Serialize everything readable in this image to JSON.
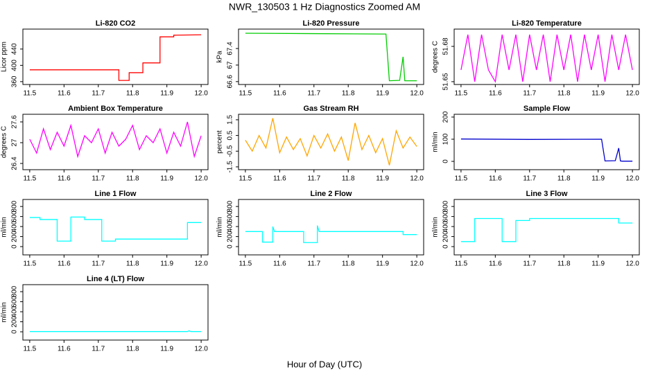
{
  "title": "NWR_130503  1 Hz Diagnostics Zoomed AM",
  "xlabel": "Hour of Day (UTC)",
  "chart_data": [
    {
      "type": "line",
      "title": "Li-820 CO2",
      "ylabel": "Licor ppm",
      "x": [
        11.5,
        11.76,
        11.76,
        11.79,
        11.79,
        11.83,
        11.83,
        11.88,
        11.88,
        11.92,
        11.92,
        12.0
      ],
      "series": [
        {
          "color": "#ff0000",
          "values": [
            389,
            389,
            363,
            363,
            382,
            382,
            406,
            406,
            470,
            470,
            474,
            475
          ]
        }
      ],
      "xlim": [
        11.48,
        12.02
      ],
      "xticks": [
        11.5,
        11.6,
        11.7,
        11.8,
        11.9,
        {
          "value": 12,
          "label": "12.0"
        }
      ],
      "ylim": [
        353,
        489
      ],
      "yticks": [
        360,
        400,
        440
      ]
    },
    {
      "type": "line",
      "title": "Li-820 Pressure",
      "ylabel": "kPa",
      "x": [
        11.5,
        11.7,
        11.9,
        11.91,
        11.92,
        11.95,
        11.96,
        11.965,
        11.97,
        12.0
      ],
      "series": [
        {
          "color": "#00cc00",
          "values": [
            67.77,
            67.76,
            67.75,
            67.75,
            66.62,
            66.63,
            67.2,
            66.62,
            66.62,
            66.62
          ]
        }
      ],
      "xlim": [
        11.48,
        12.02
      ],
      "xticks": [
        11.5,
        11.6,
        11.7,
        11.8,
        11.9,
        {
          "value": 12,
          "label": "12.0"
        }
      ],
      "ylim": [
        66.53,
        67.87
      ],
      "yticks": [
        66.6,
        67.0,
        67.4
      ]
    },
    {
      "type": "line",
      "title": "Li-820 Temperature",
      "ylabel": "degrees C",
      "x": [
        11.5,
        11.52,
        11.54,
        11.56,
        11.58,
        11.6,
        11.62,
        11.64,
        11.66,
        11.68,
        11.7,
        11.72,
        11.74,
        11.76,
        11.78,
        11.8,
        11.82,
        11.84,
        11.86,
        11.88,
        11.9,
        11.92,
        11.94,
        11.96,
        11.98,
        12.0
      ],
      "series": [
        {
          "color": "#ff00ff",
          "values": [
            51.66,
            51.69,
            51.65,
            51.69,
            51.66,
            51.65,
            51.69,
            51.66,
            51.69,
            51.65,
            51.69,
            51.66,
            51.69,
            51.65,
            51.69,
            51.66,
            51.69,
            51.65,
            51.69,
            51.66,
            51.69,
            51.65,
            51.69,
            51.66,
            51.69,
            51.66
          ]
        }
      ],
      "xlim": [
        11.48,
        12.02
      ],
      "xticks": [
        11.5,
        11.6,
        11.7,
        11.8,
        11.9,
        {
          "value": 12,
          "label": "12.0"
        }
      ],
      "ylim": [
        51.6476,
        51.6947
      ],
      "yticks": [
        51.65,
        51.68
      ]
    },
    {
      "type": "line",
      "title": "Ambient Box Temperature",
      "ylabel": "degrees C",
      "x": [
        11.5,
        11.52,
        11.54,
        11.56,
        11.58,
        11.6,
        11.62,
        11.64,
        11.66,
        11.68,
        11.7,
        11.72,
        11.74,
        11.76,
        11.78,
        11.8,
        11.82,
        11.84,
        11.86,
        11.88,
        11.9,
        11.92,
        11.94,
        11.96,
        11.98,
        12.0
      ],
      "series": [
        {
          "color": "#ff00ff",
          "values": [
            27.1,
            26.7,
            27.4,
            26.8,
            27.3,
            26.9,
            27.5,
            26.6,
            27.2,
            27.0,
            27.4,
            26.7,
            27.3,
            26.9,
            27.1,
            27.5,
            26.8,
            27.2,
            27.0,
            27.4,
            26.7,
            27.3,
            26.9,
            27.6,
            26.6,
            27.2
          ]
        }
      ],
      "xlim": [
        11.48,
        12.02
      ],
      "xticks": [
        11.5,
        11.6,
        11.7,
        11.8,
        11.9,
        {
          "value": 12,
          "label": "12.0"
        }
      ],
      "ylim": [
        26.22,
        27.82
      ],
      "yticks": [
        26.4,
        27.0,
        27.6
      ]
    },
    {
      "type": "line",
      "title": "Gas Stream RH",
      "ylabel": "percent",
      "x": [
        11.5,
        11.52,
        11.54,
        11.56,
        11.58,
        11.6,
        11.62,
        11.64,
        11.66,
        11.68,
        11.7,
        11.72,
        11.74,
        11.76,
        11.78,
        11.8,
        11.82,
        11.84,
        11.86,
        11.88,
        11.9,
        11.92,
        11.94,
        11.96,
        11.98,
        12.0
      ],
      "series": [
        {
          "color": "#ffa500",
          "values": [
            0.2,
            -0.5,
            0.5,
            -0.3,
            1.6,
            -0.6,
            0.4,
            -0.4,
            0.3,
            -0.8,
            0.5,
            -0.3,
            0.6,
            -0.5,
            0.4,
            -1.1,
            1.3,
            -0.4,
            0.5,
            -0.6,
            0.3,
            -1.4,
            0.8,
            -0.3,
            0.4,
            -0.2
          ]
        }
      ],
      "xlim": [
        11.48,
        12.02
      ],
      "xticks": [
        11.5,
        11.6,
        11.7,
        11.8,
        11.9,
        {
          "value": 12,
          "label": "12.0"
        }
      ],
      "ylim": [
        -1.68,
        1.85
      ],
      "yticks": [
        -1.5,
        -0.5,
        0.5,
        1.5
      ]
    },
    {
      "type": "line",
      "title": "Sample Flow",
      "ylabel": "ml/min",
      "x": [
        11.5,
        11.7,
        11.91,
        11.92,
        11.95,
        11.96,
        11.965,
        11.97,
        12.0
      ],
      "series": [
        {
          "color": "#0000cc",
          "values": [
            101,
            99,
            100,
            2,
            3,
            60,
            2,
            1,
            1
          ]
        }
      ],
      "xlim": [
        11.48,
        12.02
      ],
      "xticks": [
        11.5,
        11.6,
        11.7,
        11.8,
        11.9,
        {
          "value": 12,
          "label": "12.0"
        }
      ],
      "ylim": [
        -37.5,
        212.5
      ],
      "yticks": [
        0,
        100,
        200
      ]
    },
    {
      "type": "line",
      "title": "Line 1 Flow",
      "ylabel": "ml/min",
      "x": [
        11.5,
        11.53,
        11.53,
        11.58,
        11.58,
        11.62,
        11.62,
        11.66,
        11.66,
        11.71,
        11.71,
        11.75,
        11.75,
        11.96,
        11.96,
        12.0
      ],
      "series": [
        {
          "color": "#00ffff",
          "values": [
            580,
            580,
            540,
            540,
            110,
            110,
            590,
            590,
            540,
            540,
            110,
            110,
            150,
            150,
            480,
            480
          ]
        }
      ],
      "xlim": [
        11.48,
        12.02
      ],
      "xticks": [
        11.5,
        11.6,
        11.7,
        11.8,
        11.9,
        {
          "value": 12,
          "label": "12.0"
        }
      ],
      "ylim": [
        -165,
        940
      ],
      "yticks": [
        0,
        200,
        400,
        600,
        800
      ]
    },
    {
      "type": "line",
      "title": "Line 2 Flow",
      "ylabel": "ml/min",
      "x": [
        11.5,
        11.55,
        11.55,
        11.58,
        11.58,
        11.585,
        11.67,
        11.67,
        11.71,
        11.71,
        11.715,
        11.96,
        11.96,
        12.0
      ],
      "series": [
        {
          "color": "#00ffff",
          "values": [
            300,
            300,
            90,
            90,
            400,
            300,
            300,
            80,
            80,
            420,
            300,
            300,
            240,
            240
          ]
        }
      ],
      "xlim": [
        11.48,
        12.02
      ],
      "xticks": [
        11.5,
        11.6,
        11.7,
        11.8,
        11.9,
        {
          "value": 12,
          "label": "12.0"
        }
      ],
      "ylim": [
        -165,
        940
      ],
      "yticks": [
        0,
        200,
        400,
        600,
        800
      ]
    },
    {
      "type": "line",
      "title": "Line 3 Flow",
      "ylabel": "ml/min",
      "x": [
        11.5,
        11.54,
        11.54,
        11.62,
        11.62,
        11.66,
        11.66,
        11.7,
        11.7,
        11.96,
        11.96,
        12.0
      ],
      "series": [
        {
          "color": "#00ffff",
          "values": [
            100,
            100,
            560,
            560,
            100,
            100,
            520,
            520,
            560,
            560,
            470,
            470
          ]
        }
      ],
      "xlim": [
        11.48,
        12.02
      ],
      "xticks": [
        11.5,
        11.6,
        11.7,
        11.8,
        11.9,
        {
          "value": 12,
          "label": "12.0"
        }
      ],
      "ylim": [
        -165,
        940
      ],
      "yticks": [
        0,
        200,
        400,
        600,
        800
      ]
    },
    {
      "type": "line",
      "title": "Line 4 (LT) Flow",
      "ylabel": "ml/min",
      "x": [
        11.5,
        11.96,
        11.965,
        11.97,
        12.0
      ],
      "series": [
        {
          "color": "#00ffff",
          "values": [
            5,
            5,
            20,
            5,
            5
          ]
        }
      ],
      "xlim": [
        11.48,
        12.02
      ],
      "xticks": [
        11.5,
        11.6,
        11.7,
        11.8,
        11.9,
        {
          "value": 12,
          "label": "12.0"
        }
      ],
      "ylim": [
        -165,
        940
      ],
      "yticks": [
        0,
        200,
        400,
        600,
        800
      ]
    }
  ]
}
